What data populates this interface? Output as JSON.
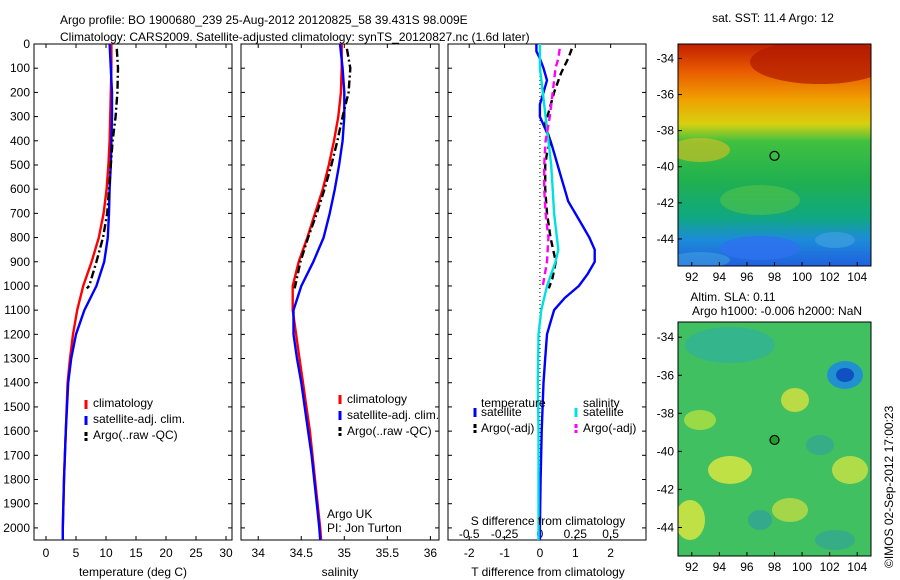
{
  "header": {
    "line1": "Argo profile: BO 1900680_239 25-Aug-2012 20120825_58 39.431S 98.009E",
    "line2": "Climatology: CARS2009. Satellite-adjusted climatology: synTS_20120827.nc (1.6d later)"
  },
  "colors": {
    "climatology": "#ff0000",
    "satellite": "#0000ff",
    "argo": "#000000",
    "sat_diff_s": "#00e0e0",
    "argo_diff_s": "#ff00ff"
  },
  "chart_data": [
    {
      "type": "line",
      "id": "temperature",
      "xlabel": "temperature (deg C)",
      "ylabel": "",
      "xlim": [
        -2,
        31
      ],
      "ylim": [
        0,
        2050
      ],
      "xticks": [
        "0",
        "5",
        "10",
        "15",
        "20",
        "25",
        "30"
      ],
      "yticks": [
        "0",
        "100",
        "200",
        "300",
        "400",
        "500",
        "600",
        "700",
        "800",
        "900",
        "1000",
        "1100",
        "1200",
        "1300",
        "1400",
        "1500",
        "1600",
        "1700",
        "1800",
        "1900",
        "2000"
      ],
      "legend": {
        "position": "lower-center",
        "entries": [
          "climatology",
          "satellite-adj. clim.",
          "Argo(..raw -QC)"
        ]
      },
      "series": [
        {
          "name": "climatology",
          "style": "solid",
          "color": "#ff0000",
          "points": [
            [
              10.9,
              0
            ],
            [
              10.9,
              100
            ],
            [
              10.8,
              200
            ],
            [
              10.7,
              300
            ],
            [
              10.6,
              400
            ],
            [
              10.4,
              500
            ],
            [
              10.1,
              600
            ],
            [
              9.6,
              700
            ],
            [
              8.8,
              800
            ],
            [
              7.6,
              900
            ],
            [
              6.2,
              1000
            ],
            [
              5.2,
              1100
            ],
            [
              4.5,
              1200
            ],
            [
              4.0,
              1300
            ],
            [
              3.6,
              1400
            ],
            [
              3.3,
              1600
            ],
            [
              3.0,
              1800
            ],
            [
              2.8,
              2000
            ],
            [
              2.8,
              2050
            ]
          ]
        },
        {
          "name": "satellite-adj. clim.",
          "style": "solid",
          "color": "#0000ff",
          "points": [
            [
              10.6,
              0
            ],
            [
              10.8,
              100
            ],
            [
              11.0,
              200
            ],
            [
              11.0,
              300
            ],
            [
              10.9,
              400
            ],
            [
              10.8,
              500
            ],
            [
              10.6,
              600
            ],
            [
              10.5,
              700
            ],
            [
              10.3,
              800
            ],
            [
              9.7,
              900
            ],
            [
              8.4,
              1000
            ],
            [
              6.4,
              1100
            ],
            [
              5.0,
              1200
            ],
            [
              4.2,
              1300
            ],
            [
              3.7,
              1400
            ],
            [
              3.3,
              1600
            ],
            [
              3.0,
              1800
            ],
            [
              2.8,
              2000
            ],
            [
              2.8,
              2050
            ]
          ]
        },
        {
          "name": "Argo(..raw -QC)",
          "style": "dashdot",
          "color": "#000000",
          "points": [
            [
              11.8,
              20
            ],
            [
              12.0,
              100
            ],
            [
              11.9,
              200
            ],
            [
              11.6,
              300
            ],
            [
              11.1,
              400
            ],
            [
              10.8,
              500
            ],
            [
              10.5,
              600
            ],
            [
              10.2,
              700
            ],
            [
              9.5,
              800
            ],
            [
              8.4,
              900
            ],
            [
              7.2,
              1000
            ],
            [
              6.8,
              1010
            ]
          ]
        }
      ]
    },
    {
      "type": "line",
      "id": "salinity",
      "xlabel": "salinity",
      "xlim": [
        33.8,
        36.1
      ],
      "ylim": [
        0,
        2050
      ],
      "xticks": [
        "34",
        "34.5",
        "35",
        "35.5",
        "36"
      ],
      "legend": {
        "position": "lower-center",
        "entries": [
          "climatology",
          "satellite-adj. clim.",
          "Argo(..raw -QC)"
        ]
      },
      "annotation": {
        "line1": "Argo UK",
        "line2": "PI: Jon Turton"
      },
      "series": [
        {
          "name": "climatology",
          "style": "solid",
          "color": "#ff0000",
          "points": [
            [
              34.97,
              0
            ],
            [
              34.97,
              100
            ],
            [
              34.96,
              200
            ],
            [
              34.93,
              300
            ],
            [
              34.88,
              400
            ],
            [
              34.82,
              500
            ],
            [
              34.75,
              600
            ],
            [
              34.66,
              700
            ],
            [
              34.57,
              800
            ],
            [
              34.47,
              900
            ],
            [
              34.4,
              1000
            ],
            [
              34.4,
              1100
            ],
            [
              34.44,
              1200
            ],
            [
              34.48,
              1300
            ],
            [
              34.52,
              1400
            ],
            [
              34.56,
              1500
            ],
            [
              34.6,
              1600
            ],
            [
              34.63,
              1700
            ],
            [
              34.66,
              1800
            ],
            [
              34.69,
              1900
            ],
            [
              34.72,
              2000
            ],
            [
              34.73,
              2050
            ]
          ]
        },
        {
          "name": "satellite-adj. clim.",
          "style": "solid",
          "color": "#0000ff",
          "points": [
            [
              34.95,
              0
            ],
            [
              34.98,
              100
            ],
            [
              35.0,
              200
            ],
            [
              35.0,
              300
            ],
            [
              34.98,
              400
            ],
            [
              34.94,
              500
            ],
            [
              34.89,
              600
            ],
            [
              34.83,
              700
            ],
            [
              34.76,
              800
            ],
            [
              34.64,
              900
            ],
            [
              34.5,
              1000
            ],
            [
              34.41,
              1100
            ],
            [
              34.41,
              1200
            ],
            [
              34.45,
              1300
            ],
            [
              34.5,
              1400
            ],
            [
              34.54,
              1500
            ],
            [
              34.58,
              1600
            ],
            [
              34.62,
              1700
            ],
            [
              34.65,
              1800
            ],
            [
              34.68,
              1900
            ],
            [
              34.71,
              2000
            ],
            [
              34.72,
              2050
            ]
          ]
        },
        {
          "name": "Argo(..raw -QC)",
          "style": "dashdot",
          "color": "#000000",
          "points": [
            [
              35.03,
              20
            ],
            [
              35.07,
              100
            ],
            [
              35.05,
              200
            ],
            [
              34.98,
              300
            ],
            [
              34.92,
              400
            ],
            [
              34.85,
              500
            ],
            [
              34.77,
              600
            ],
            [
              34.68,
              700
            ],
            [
              34.58,
              800
            ],
            [
              34.49,
              900
            ],
            [
              34.43,
              1000
            ],
            [
              34.42,
              1010
            ]
          ]
        }
      ]
    },
    {
      "type": "line",
      "id": "difference",
      "xlabel": "T difference from climatology",
      "xlabel_top": "S difference from climatology",
      "xlim": [
        -2.6,
        3.0
      ],
      "ylim": [
        0,
        2050
      ],
      "xticks": [
        "-2",
        "-1",
        "0",
        "1",
        "2"
      ],
      "xticks_top": [
        "-0.5",
        "-0.25",
        "0",
        "0.25",
        "0.5"
      ],
      "legend_headers": [
        "temperature",
        "salinity"
      ],
      "legend": {
        "position": "lower-center",
        "entries": [
          "satellite",
          "Argo(-adj)",
          "satellite",
          "Argo(-adj)"
        ]
      },
      "series": [
        {
          "name": "temperature satellite",
          "style": "solid",
          "color": "#0000ff",
          "points": [
            [
              -0.1,
              0
            ],
            [
              -0.1,
              30
            ],
            [
              0.0,
              60
            ],
            [
              0.1,
              100
            ],
            [
              0.2,
              150
            ],
            [
              0.1,
              200
            ],
            [
              0.0,
              250
            ],
            [
              0.0,
              300
            ],
            [
              0.15,
              350
            ],
            [
              0.3,
              400
            ],
            [
              0.4,
              450
            ],
            [
              0.5,
              500
            ],
            [
              0.6,
              550
            ],
            [
              0.7,
              600
            ],
            [
              0.8,
              650
            ],
            [
              1.0,
              700
            ],
            [
              1.2,
              750
            ],
            [
              1.4,
              800
            ],
            [
              1.55,
              850
            ],
            [
              1.55,
              900
            ],
            [
              1.35,
              950
            ],
            [
              1.1,
              1000
            ],
            [
              0.7,
              1050
            ],
            [
              0.4,
              1100
            ],
            [
              0.3,
              1150
            ],
            [
              0.2,
              1200
            ],
            [
              0.15,
              1300
            ],
            [
              0.1,
              1400
            ],
            [
              0.05,
              1600
            ],
            [
              0.02,
              1800
            ],
            [
              0.0,
              2000
            ],
            [
              0.0,
              2050
            ]
          ]
        },
        {
          "name": "temperature Argo(-adj)",
          "style": "dashed",
          "color": "#000000",
          "points": [
            [
              0.9,
              20
            ],
            [
              0.8,
              60
            ],
            [
              0.6,
              120
            ],
            [
              0.4,
              200
            ],
            [
              0.25,
              280
            ],
            [
              0.15,
              330
            ],
            [
              0.2,
              360
            ],
            [
              0.3,
              400
            ],
            [
              0.2,
              450
            ],
            [
              0.15,
              500
            ],
            [
              0.15,
              600
            ],
            [
              0.2,
              700
            ],
            [
              0.3,
              800
            ],
            [
              0.45,
              900
            ],
            [
              0.35,
              970
            ],
            [
              0.25,
              1010
            ]
          ]
        },
        {
          "name": "salinity satellite",
          "style": "solid",
          "color": "#00e0e0",
          "points": [
            [
              0.0,
              0
            ],
            [
              0.0,
              100
            ],
            [
              0.02,
              200
            ],
            [
              0.04,
              300
            ],
            [
              0.06,
              400
            ],
            [
              0.08,
              500
            ],
            [
              0.09,
              600
            ],
            [
              0.1,
              700
            ],
            [
              0.12,
              800
            ],
            [
              0.13,
              850
            ],
            [
              0.11,
              900
            ],
            [
              0.05,
              1000
            ],
            [
              0.01,
              1100
            ],
            [
              -0.01,
              1200
            ],
            [
              -0.015,
              1400
            ],
            [
              -0.01,
              1600
            ],
            [
              -0.01,
              1800
            ],
            [
              -0.01,
              2000
            ],
            [
              -0.01,
              2050
            ]
          ]
        },
        {
          "name": "salinity Argo(-adj)",
          "style": "dashed",
          "color": "#ff00ff",
          "points": [
            [
              0.14,
              20
            ],
            [
              0.13,
              60
            ],
            [
              0.11,
              100
            ],
            [
              0.09,
              200
            ],
            [
              0.07,
              300
            ],
            [
              0.04,
              400
            ],
            [
              0.03,
              500
            ],
            [
              0.03,
              600
            ],
            [
              0.04,
              700
            ],
            [
              0.06,
              800
            ],
            [
              0.05,
              900
            ],
            [
              0.02,
              1000
            ],
            [
              0.01,
              1010
            ]
          ]
        }
      ]
    },
    {
      "type": "heatmap",
      "id": "sst_map",
      "title": "sat. SST: 11.4  Argo: 12",
      "xticks": [
        "92",
        "94",
        "96",
        "98",
        "100",
        "102",
        "104"
      ],
      "yticks": [
        "-34",
        "-36",
        "-38",
        "-40",
        "-42",
        "-44"
      ],
      "xlim": [
        91,
        105
      ],
      "ylim": [
        -45.5,
        -33.2
      ],
      "marker": {
        "lon": 98.0,
        "lat": -39.4
      }
    },
    {
      "type": "heatmap",
      "id": "sla_map",
      "title_line1": "Altim. SLA: 0.11",
      "title_line2": "Argo h1000: -0.006 h2000: NaN",
      "xticks": [
        "92",
        "94",
        "96",
        "98",
        "100",
        "102",
        "104"
      ],
      "yticks": [
        "-34",
        "-36",
        "-38",
        "-40",
        "-42",
        "-44"
      ],
      "xlim": [
        91,
        105
      ],
      "ylim": [
        -45.5,
        -33.2
      ],
      "marker": {
        "lon": 98.0,
        "lat": -39.4
      }
    }
  ],
  "footer": {
    "credit": "©IMOS 02-Sep-2012 17:00:23"
  }
}
